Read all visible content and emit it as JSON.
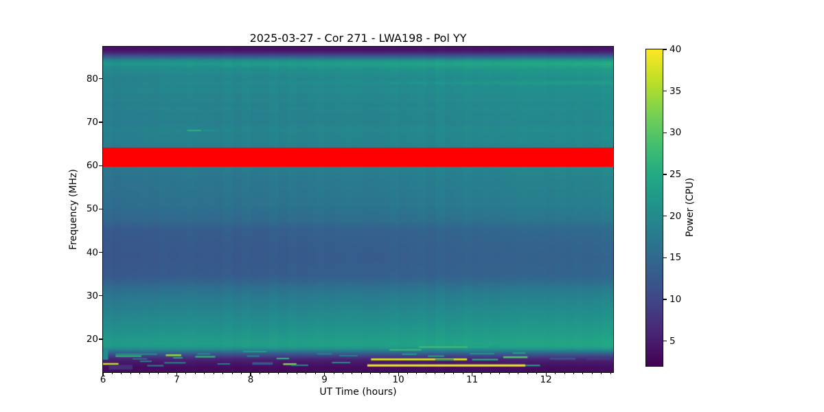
{
  "title": "2025-03-27 - Cor 271 - LWA198 - Pol YY",
  "axes": {
    "xlabel": "UT Time (hours)",
    "ylabel": "Frequency (MHz)",
    "xlim": [
      6.0,
      12.91
    ],
    "ylim": [
      12.4,
      87.4
    ],
    "xticks": [
      6,
      7,
      8,
      9,
      10,
      11,
      12
    ],
    "yticks": [
      20,
      30,
      40,
      50,
      60,
      70,
      80
    ],
    "x_minor_step": 0.125
  },
  "colorbar": {
    "label": "Power (CPU)",
    "ticks": [
      5,
      10,
      15,
      20,
      25,
      30,
      35,
      40
    ],
    "vmin": 2,
    "vmax": 40,
    "colormap": "viridis"
  },
  "chart_data": {
    "type": "heatmap",
    "title": "2025-03-27 - Cor 271 - LWA198 - Pol YY",
    "xlabel": "UT Time (hours)",
    "ylabel": "Frequency (MHz)",
    "value_label": "Power (CPU)",
    "x_range_hours": [
      6.0,
      12.91
    ],
    "y_range_mhz": [
      12.4,
      87.4
    ],
    "value_range": [
      2,
      40
    ],
    "colormap": "viridis",
    "time_bin_hours": 0.125,
    "noise_amplitude": 0.3,
    "masked_band": {
      "f_low_mhz": 59.7,
      "f_high_mhz": 64.2,
      "color": "#ff0000"
    },
    "spectrum_profile": {
      "columns": [
        "freq_mhz",
        "power_at_6.0h",
        "power_at_12.9h"
      ],
      "rows": [
        [
          87.4,
          3.5,
          3.8
        ],
        [
          86.6,
          4.0,
          4.4
        ],
        [
          86.1,
          5.5,
          6.2
        ],
        [
          85.6,
          8.5,
          9.8
        ],
        [
          85.1,
          12.5,
          14.2
        ],
        [
          84.6,
          16.5,
          19.0
        ],
        [
          84.1,
          20.0,
          23.5
        ],
        [
          83.4,
          21.5,
          25.5
        ],
        [
          82.7,
          20.2,
          23.8
        ],
        [
          82.1,
          19.4,
          22.4
        ],
        [
          81.0,
          19.1,
          21.8
        ],
        [
          80.0,
          18.3,
          21.0
        ],
        [
          79.0,
          18.8,
          23.0
        ],
        [
          78.3,
          18.5,
          21.0
        ],
        [
          77.0,
          19.0,
          21.1
        ],
        [
          76.0,
          18.2,
          20.5
        ],
        [
          75.0,
          18.6,
          20.7
        ],
        [
          74.0,
          18.0,
          20.1
        ],
        [
          73.0,
          18.5,
          20.5
        ],
        [
          72.0,
          17.8,
          19.9
        ],
        [
          71.0,
          18.2,
          20.1
        ],
        [
          70.0,
          17.7,
          19.7
        ],
        [
          69.0,
          18.3,
          20.2
        ],
        [
          68.0,
          18.6,
          20.5
        ],
        [
          67.0,
          18.0,
          19.9
        ],
        [
          66.0,
          18.3,
          20.1
        ],
        [
          65.0,
          17.8,
          19.7
        ],
        [
          64.2,
          17.6,
          19.6
        ],
        [
          59.7,
          17.0,
          20.0
        ],
        [
          58.5,
          16.6,
          19.6
        ],
        [
          57.0,
          16.2,
          19.2
        ],
        [
          56.0,
          15.9,
          18.9
        ],
        [
          55.0,
          16.1,
          19.1
        ],
        [
          54.0,
          15.7,
          18.7
        ],
        [
          53.0,
          15.9,
          18.8
        ],
        [
          52.0,
          15.4,
          18.3
        ],
        [
          51.0,
          15.6,
          18.5
        ],
        [
          50.0,
          15.1,
          17.9
        ],
        [
          49.0,
          14.8,
          17.6
        ],
        [
          48.0,
          14.5,
          17.3
        ],
        [
          47.0,
          14.2,
          16.9
        ],
        [
          46.3,
          13.2,
          15.9
        ],
        [
          45.0,
          12.6,
          15.1
        ],
        [
          43.0,
          12.3,
          14.7
        ],
        [
          41.0,
          12.1,
          14.4
        ],
        [
          39.0,
          12.0,
          14.2
        ],
        [
          37.0,
          12.2,
          14.3
        ],
        [
          35.0,
          12.4,
          14.5
        ],
        [
          33.8,
          13.0,
          15.1
        ],
        [
          33.0,
          14.0,
          16.1
        ],
        [
          32.0,
          15.2,
          17.3
        ],
        [
          31.0,
          16.0,
          18.1
        ],
        [
          30.0,
          16.8,
          18.9
        ],
        [
          29.0,
          17.3,
          19.4
        ],
        [
          28.0,
          17.8,
          19.9
        ],
        [
          27.0,
          18.3,
          20.4
        ],
        [
          26.0,
          18.8,
          20.9
        ],
        [
          25.0,
          19.3,
          21.4
        ],
        [
          24.0,
          19.8,
          21.9
        ],
        [
          23.0,
          20.3,
          22.4
        ],
        [
          22.0,
          20.8,
          22.9
        ],
        [
          21.0,
          21.3,
          23.4
        ],
        [
          20.0,
          22.0,
          24.1
        ],
        [
          19.0,
          22.6,
          24.7
        ],
        [
          18.3,
          22.0,
          24.0
        ],
        [
          17.8,
          20.0,
          22.0
        ],
        [
          17.3,
          16.5,
          18.4
        ],
        [
          16.8,
          13.0,
          14.4
        ],
        [
          16.3,
          10.0,
          11.0
        ],
        [
          15.8,
          7.5,
          8.1
        ],
        [
          15.3,
          5.5,
          5.9
        ],
        [
          14.5,
          4.2,
          4.5
        ],
        [
          13.5,
          3.2,
          3.4
        ],
        [
          12.4,
          2.8,
          3.0
        ]
      ]
    },
    "rfi_streaks": {
      "columns": [
        "t_start_h",
        "t_end_h",
        "freq_mhz",
        "power",
        "height_mhz"
      ],
      "rows": [
        [
          6.0,
          6.07,
          16.5,
          20,
          2.5
        ],
        [
          6.0,
          6.21,
          14.3,
          37,
          0.4
        ],
        [
          6.08,
          6.4,
          13.55,
          7,
          1.1
        ],
        [
          6.17,
          6.52,
          16.1,
          27,
          0.35
        ],
        [
          6.17,
          6.73,
          16.55,
          21,
          0.3
        ],
        [
          6.4,
          6.6,
          15.45,
          16,
          0.3
        ],
        [
          6.5,
          6.66,
          14.9,
          19,
          0.3
        ],
        [
          6.6,
          6.82,
          13.9,
          17,
          0.35
        ],
        [
          6.85,
          7.06,
          16.3,
          34,
          0.4
        ],
        [
          6.83,
          7.12,
          14.55,
          20,
          0.3
        ],
        [
          6.95,
          7.08,
          15.7,
          24,
          0.3
        ],
        [
          7.25,
          7.52,
          15.95,
          27,
          0.35
        ],
        [
          7.28,
          7.45,
          16.6,
          21,
          0.3
        ],
        [
          7.14,
          7.33,
          68.1,
          26,
          0.3
        ],
        [
          7.36,
          7.52,
          68.1,
          21,
          0.3
        ],
        [
          7.55,
          7.72,
          14.3,
          18,
          0.3
        ],
        [
          7.9,
          8.22,
          17.15,
          23,
          0.3
        ],
        [
          7.95,
          8.12,
          16.1,
          20,
          0.3
        ],
        [
          8.02,
          8.3,
          14.4,
          12,
          0.6
        ],
        [
          8.35,
          8.52,
          15.55,
          26,
          0.35
        ],
        [
          8.44,
          8.62,
          14.25,
          33,
          0.4
        ],
        [
          8.55,
          8.78,
          14.0,
          20,
          0.3
        ],
        [
          8.9,
          9.1,
          16.6,
          19,
          0.3
        ],
        [
          9.1,
          9.35,
          14.6,
          21,
          0.3
        ],
        [
          9.2,
          9.45,
          16.2,
          18,
          0.3
        ],
        [
          9.63,
          10.93,
          15.35,
          38,
          0.45
        ],
        [
          9.58,
          11.72,
          13.95,
          39,
          0.5
        ],
        [
          9.88,
          10.31,
          17.55,
          27,
          0.35
        ],
        [
          10.05,
          10.25,
          16.55,
          23,
          0.3
        ],
        [
          10.28,
          10.94,
          18.2,
          28,
          0.35
        ],
        [
          10.4,
          10.62,
          16.1,
          24,
          0.3
        ],
        [
          10.5,
          10.75,
          15.3,
          22,
          0.3
        ],
        [
          10.97,
          11.22,
          18.2,
          25,
          0.3
        ],
        [
          10.97,
          11.3,
          16.65,
          22,
          0.3
        ],
        [
          11.0,
          11.35,
          15.3,
          26,
          0.35
        ],
        [
          11.42,
          11.75,
          15.85,
          30,
          0.4
        ],
        [
          11.55,
          11.72,
          16.8,
          24,
          0.3
        ],
        [
          11.72,
          11.92,
          13.95,
          23,
          0.35
        ],
        [
          12.05,
          12.4,
          15.5,
          11,
          0.5
        ],
        [
          12.55,
          12.88,
          15.6,
          8,
          0.7
        ]
      ]
    }
  }
}
